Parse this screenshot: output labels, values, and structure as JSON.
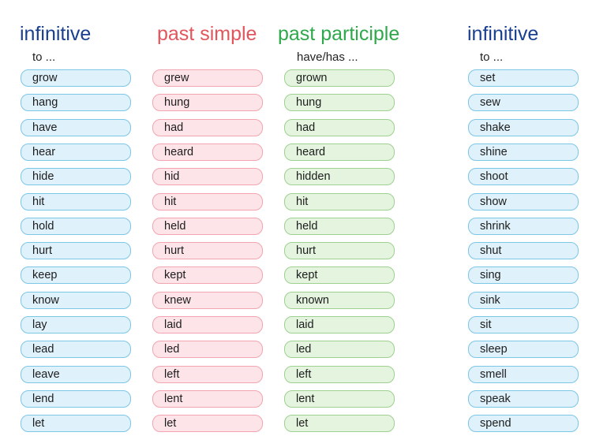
{
  "columns": [
    {
      "title": "infinitive",
      "subtitle": "to ...",
      "words": [
        "grow",
        "hang",
        "have",
        "hear",
        "hide",
        "hit",
        "hold",
        "hurt",
        "keep",
        "know",
        "lay",
        "lead",
        "leave",
        "lend",
        "let"
      ]
    },
    {
      "title": "past simple",
      "subtitle": "",
      "words": [
        "grew",
        "hung",
        "had",
        "heard",
        "hid",
        "hit",
        "held",
        "hurt",
        "kept",
        "knew",
        "laid",
        "led",
        "left",
        "lent",
        "let"
      ]
    },
    {
      "title": "past participle",
      "subtitle": "have/has ...",
      "words": [
        "grown",
        "hung",
        "had",
        "heard",
        "hidden",
        "hit",
        "held",
        "hurt",
        "kept",
        "known",
        "laid",
        "led",
        "left",
        "lent",
        "let"
      ]
    },
    {
      "title": "infinitive",
      "subtitle": "to ...",
      "words": [
        "set",
        "sew",
        "shake",
        "shine",
        "shoot",
        "show",
        "shrink",
        "shut",
        "sing",
        "sink",
        "sit",
        "sleep",
        "smell",
        "speak",
        "spend"
      ]
    }
  ],
  "colors": {
    "infinitive_title": "#1a3f8f",
    "past_simple_title": "#e2555d",
    "past_participle_title": "#2ea84a",
    "infinitive_pill": "#dff1fb",
    "past_simple_pill": "#fde4e8",
    "past_participle_pill": "#e4f4df"
  }
}
